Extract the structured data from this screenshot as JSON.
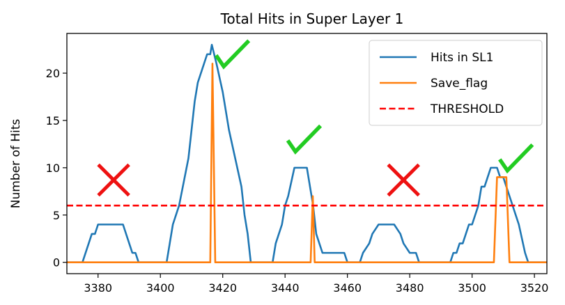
{
  "chart_data": {
    "type": "line",
    "title": "Total Hits in Super Layer 1",
    "xlabel": "",
    "ylabel": "Number of Hits",
    "xlim": [
      3370,
      3524
    ],
    "ylim": [
      -1.2,
      24.2
    ],
    "xticks": [
      3380,
      3400,
      3420,
      3440,
      3460,
      3480,
      3500,
      3520
    ],
    "yticks": [
      0,
      5,
      10,
      15,
      20
    ],
    "grid": false,
    "legend_position": "top-right",
    "series": [
      {
        "name": "Hits in SL1",
        "color": "#1f77b4",
        "style": "solid",
        "points": [
          [
            3370,
            0
          ],
          [
            3375,
            0
          ],
          [
            3377,
            2
          ],
          [
            3378,
            3
          ],
          [
            3379,
            3
          ],
          [
            3380,
            4
          ],
          [
            3386,
            4
          ],
          [
            3388,
            4
          ],
          [
            3390,
            2
          ],
          [
            3391,
            1
          ],
          [
            3392,
            1
          ],
          [
            3393,
            0
          ],
          [
            3402,
            0
          ],
          [
            3403,
            2
          ],
          [
            3404,
            4
          ],
          [
            3405,
            5
          ],
          [
            3406,
            6
          ],
          [
            3409,
            11
          ],
          [
            3411,
            17
          ],
          [
            3412,
            19
          ],
          [
            3414,
            21
          ],
          [
            3415,
            22
          ],
          [
            3416,
            22
          ],
          [
            3416.5,
            23
          ],
          [
            3418,
            21
          ],
          [
            3420,
            18
          ],
          [
            3422,
            14
          ],
          [
            3424,
            11
          ],
          [
            3426,
            8
          ],
          [
            3427,
            5
          ],
          [
            3428,
            3
          ],
          [
            3429,
            0
          ],
          [
            3436,
            0
          ],
          [
            3437,
            2
          ],
          [
            3439,
            4
          ],
          [
            3440,
            6
          ],
          [
            3441,
            7
          ],
          [
            3443,
            10
          ],
          [
            3447,
            10
          ],
          [
            3448,
            8
          ],
          [
            3449,
            6
          ],
          [
            3450,
            3
          ],
          [
            3451,
            2
          ],
          [
            3452,
            1
          ],
          [
            3459,
            1
          ],
          [
            3460,
            0
          ],
          [
            3464,
            0
          ],
          [
            3465,
            1
          ],
          [
            3467,
            2
          ],
          [
            3468,
            3
          ],
          [
            3470,
            4
          ],
          [
            3475,
            4
          ],
          [
            3477,
            3
          ],
          [
            3478,
            2
          ],
          [
            3480,
            1
          ],
          [
            3482,
            1
          ],
          [
            3483,
            0
          ],
          [
            3493,
            0
          ],
          [
            3494,
            1
          ],
          [
            3495,
            1
          ],
          [
            3496,
            2
          ],
          [
            3497,
            2
          ],
          [
            3499,
            4
          ],
          [
            3500,
            4
          ],
          [
            3502,
            6
          ],
          [
            3503,
            8
          ],
          [
            3504,
            8
          ],
          [
            3505,
            9
          ],
          [
            3506,
            10
          ],
          [
            3508,
            10
          ],
          [
            3509,
            9
          ],
          [
            3510,
            9
          ],
          [
            3511,
            8
          ],
          [
            3512,
            7
          ],
          [
            3513,
            6
          ],
          [
            3514,
            5
          ],
          [
            3515,
            4
          ],
          [
            3517,
            1
          ],
          [
            3518,
            0
          ],
          [
            3524,
            0
          ]
        ]
      },
      {
        "name": "Save_flag",
        "color": "#ff7f0e",
        "style": "solid",
        "points": [
          [
            3370,
            0
          ],
          [
            3416,
            0
          ],
          [
            3416.7,
            21
          ],
          [
            3417.6,
            0
          ],
          [
            3448.2,
            0
          ],
          [
            3448.9,
            7
          ],
          [
            3449.5,
            0
          ],
          [
            3507,
            0
          ],
          [
            3508,
            9
          ],
          [
            3511,
            9
          ],
          [
            3512,
            0
          ],
          [
            3524,
            0
          ]
        ]
      },
      {
        "name": "THRESHOLD",
        "color": "#ff0000",
        "style": "dashed",
        "points": [
          [
            3370,
            6
          ],
          [
            3524,
            6
          ]
        ]
      }
    ],
    "annotations": [
      {
        "type": "check-mark",
        "color": "#22cc22",
        "x": 3421,
        "y": 21
      },
      {
        "type": "check-mark",
        "color": "#22cc22",
        "x": 3444,
        "y": 12
      },
      {
        "type": "check-mark",
        "color": "#22cc22",
        "x": 3512,
        "y": 10
      },
      {
        "type": "cross-mark",
        "color": "#ee1111",
        "x": 3385,
        "y": 8.7
      },
      {
        "type": "cross-mark",
        "color": "#ee1111",
        "x": 3478,
        "y": 8.7
      }
    ]
  }
}
